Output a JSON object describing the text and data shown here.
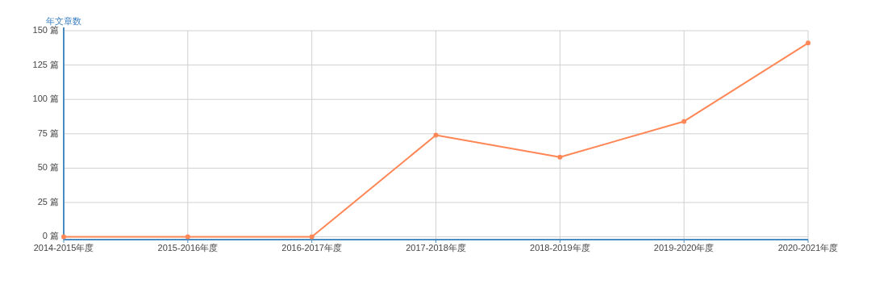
{
  "chart_data": {
    "type": "line",
    "ylabel": "年文章数",
    "categories": [
      "2014-2015年度",
      "2015-2016年度",
      "2016-2017年度",
      "2017-2018年度",
      "2018-2019年度",
      "2019-2020年度",
      "2020-2021年度"
    ],
    "series": [
      {
        "color": "#ff8756",
        "values": [
          0,
          0,
          0,
          74,
          58,
          84,
          141
        ]
      }
    ],
    "ylim": [
      -2,
      150
    ],
    "yticks": [
      {
        "value": 0,
        "label": "0 篇"
      },
      {
        "value": 25,
        "label": "25 篇"
      },
      {
        "value": 50,
        "label": "50 篇"
      },
      {
        "value": 75,
        "label": "75 篇"
      },
      {
        "value": 100,
        "label": "100 篇"
      },
      {
        "value": 125,
        "label": "125 篇"
      },
      {
        "value": 150,
        "label": "150 篇"
      }
    ],
    "grid": true,
    "marker": "circle",
    "line_style": "solid"
  }
}
